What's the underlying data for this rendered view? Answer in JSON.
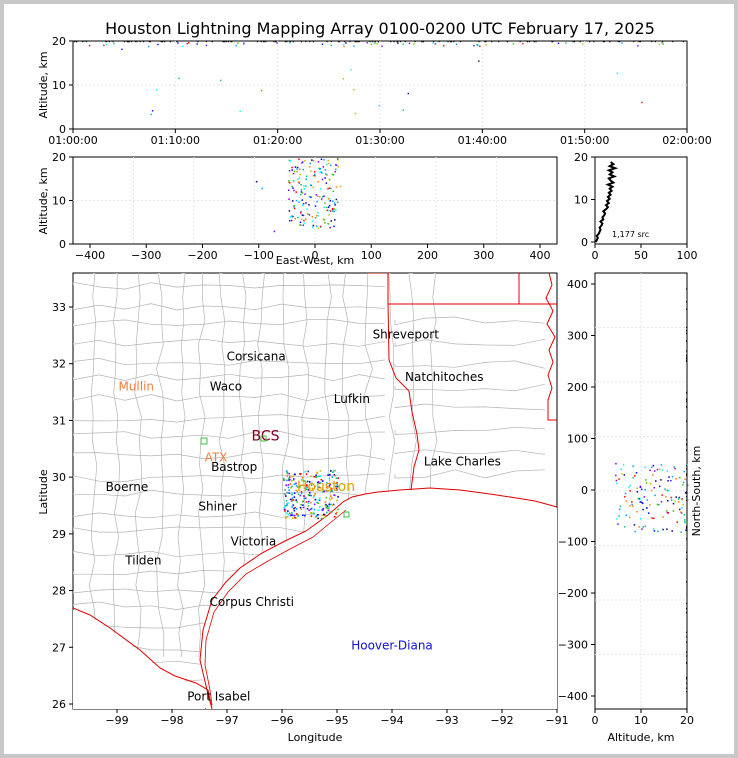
{
  "title": "Houston Lightning Mapping Array 0100-0200 UTC February 17, 2025",
  "colors": {
    "map_border_state": "#e00000",
    "map_county": "#b4b4b4",
    "coast": "#e00000",
    "src_count_text": "#000000",
    "orange_label": "#f08040",
    "blue_label": "#1010d0",
    "bcs_label": "#800020",
    "houston_label": "#e0a000"
  },
  "top_panel": {
    "ylabel": "Altitude, km",
    "yticks": [
      "0",
      "10",
      "20"
    ],
    "xticks": [
      "01:00:00",
      "01:10:00",
      "01:20:00",
      "01:30:00",
      "01:40:00",
      "01:50:00",
      "02:00:00"
    ]
  },
  "ew_panel": {
    "ylabel": "Altitude, km",
    "xlabel": "East-West, km",
    "yticks": [
      "0",
      "10",
      "20"
    ],
    "xticks": [
      "−400",
      "−300",
      "−200",
      "−100",
      "0",
      "100",
      "200",
      "300",
      "400"
    ]
  },
  "hist_panel": {
    "yticks": [
      "0",
      "10",
      "20"
    ],
    "xticks": [
      "0",
      "50",
      "100"
    ],
    "count_label": "1,177 src"
  },
  "map_panel": {
    "xlabel": "Longitude",
    "ylabel": "Latitude",
    "xticks": [
      "−99",
      "−98",
      "−97",
      "−96",
      "−95",
      "−94",
      "−93",
      "−92",
      "−91"
    ],
    "yticks": [
      "26",
      "27",
      "28",
      "29",
      "30",
      "31",
      "32",
      "33"
    ],
    "cities": [
      {
        "name": "Shreveport",
        "lon": -93.75,
        "lat": 32.52,
        "color": "black"
      },
      {
        "name": "Corsicana",
        "lon": -96.47,
        "lat": 32.13,
        "color": "black"
      },
      {
        "name": "Natchitoches",
        "lon": -93.05,
        "lat": 31.77,
        "color": "black"
      },
      {
        "name": "Mullin",
        "lon": -98.65,
        "lat": 31.6,
        "color": "orange"
      },
      {
        "name": "Waco",
        "lon": -97.02,
        "lat": 31.6,
        "color": "black"
      },
      {
        "name": "Lufkin",
        "lon": -94.73,
        "lat": 31.38,
        "color": "black"
      },
      {
        "name": "BCS",
        "lon": -96.3,
        "lat": 30.72,
        "color": "bcs"
      },
      {
        "name": "ATX",
        "lon": -97.2,
        "lat": 30.35,
        "color": "orange"
      },
      {
        "name": "Bastrop",
        "lon": -96.87,
        "lat": 30.18,
        "color": "black"
      },
      {
        "name": "Lake Charles",
        "lon": -92.72,
        "lat": 30.28,
        "color": "black"
      },
      {
        "name": "Boerne",
        "lon": -98.82,
        "lat": 29.83,
        "color": "black"
      },
      {
        "name": "Houston",
        "lon": -95.2,
        "lat": 29.83,
        "color": "houston"
      },
      {
        "name": "Shiner",
        "lon": -97.17,
        "lat": 29.48,
        "color": "black"
      },
      {
        "name": "Victoria",
        "lon": -96.52,
        "lat": 28.87,
        "color": "black"
      },
      {
        "name": "Tilden",
        "lon": -98.52,
        "lat": 28.53,
        "color": "black"
      },
      {
        "name": "Corpus Christi",
        "lon": -96.55,
        "lat": 27.8,
        "color": "black"
      },
      {
        "name": "Hoover-Diana",
        "lon": -94.0,
        "lat": 27.03,
        "color": "blue"
      },
      {
        "name": "Port Isabel",
        "lon": -97.15,
        "lat": 26.13,
        "color": "black"
      }
    ]
  },
  "ns_panel": {
    "ylabel": "North-South, km",
    "xlabel": "Altitude, km",
    "yticks": [
      "−400",
      "−300",
      "−200",
      "−100",
      "0",
      "100",
      "200",
      "300",
      "400"
    ],
    "xticks": [
      "0",
      "10",
      "20"
    ]
  },
  "chart_data": [
    {
      "type": "scatter",
      "name": "altitude-vs-time",
      "x_unit": "UTC",
      "xlim": [
        "01:00:00",
        "02:00:00"
      ],
      "ylim": [
        0,
        20
      ],
      "ylabel": "Altitude, km"
    },
    {
      "type": "scatter",
      "name": "altitude-vs-east-west",
      "xlim": [
        -420,
        420
      ],
      "ylim": [
        0,
        20
      ],
      "xlabel": "East-West, km",
      "ylabel": "Altitude, km"
    },
    {
      "type": "line",
      "name": "source-count-vs-altitude",
      "xlim": [
        0,
        100
      ],
      "ylim": [
        0,
        20
      ],
      "annotation": "1,177 src",
      "points": [
        [
          1,
          0
        ],
        [
          2,
          0.5
        ],
        [
          3,
          1
        ],
        [
          2,
          1.5
        ],
        [
          4,
          2
        ],
        [
          5,
          2.5
        ],
        [
          6,
          3
        ],
        [
          5,
          3.5
        ],
        [
          7,
          4
        ],
        [
          8,
          4.5
        ],
        [
          6,
          5
        ],
        [
          9,
          5.5
        ],
        [
          8,
          6
        ],
        [
          10,
          6.5
        ],
        [
          11,
          7
        ],
        [
          9,
          7.5
        ],
        [
          12,
          8
        ],
        [
          14,
          8.5
        ],
        [
          12,
          9
        ],
        [
          15,
          9.5
        ],
        [
          13,
          10
        ],
        [
          16,
          10.5
        ],
        [
          14,
          11
        ],
        [
          17,
          11.5
        ],
        [
          15,
          12
        ],
        [
          18,
          12.5
        ],
        [
          16,
          13
        ],
        [
          19,
          13.5
        ],
        [
          14,
          14
        ],
        [
          20,
          14.5
        ],
        [
          17,
          15
        ],
        [
          15,
          15.5
        ],
        [
          21,
          16
        ],
        [
          16,
          16.5
        ],
        [
          19,
          17
        ],
        [
          15,
          17.5
        ],
        [
          22,
          18
        ],
        [
          16,
          18.5
        ],
        [
          20,
          19
        ],
        [
          17,
          19.5
        ]
      ]
    },
    {
      "type": "scatter",
      "name": "plan-view-map",
      "xlim": [
        -99.8,
        -91
      ],
      "ylim": [
        25.95,
        33.6
      ],
      "xlabel": "Longitude",
      "ylabel": "Latitude"
    },
    {
      "type": "scatter",
      "name": "north-south-vs-altitude",
      "xlim": [
        0,
        20
      ],
      "ylim": [
        -420,
        420
      ],
      "xlabel": "Altitude, km",
      "ylabel": "North-South, km"
    }
  ]
}
